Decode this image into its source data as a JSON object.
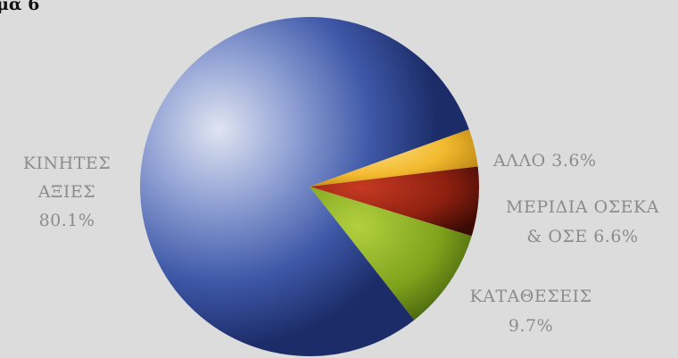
{
  "title": "μα 6",
  "chart_data": {
    "type": "pie",
    "slices": [
      {
        "name": "ΑΛΛΟ",
        "value": 3.6,
        "label_lines": [
          "ΑΛΛΟ 3.6%"
        ],
        "color": "#f2b92e"
      },
      {
        "name": "ΜΕΡΙΔΙΑ ΟΣΕΚΑ & ΟΣΕ",
        "value": 6.6,
        "label_lines": [
          "ΜΕΡΙΔΙΑ ΟΣΕΚΑ",
          "& ΟΣΕ 6.6%"
        ],
        "color": "#9a2412"
      },
      {
        "name": "ΚΑΤΑΘΕΣΕΙΣ",
        "value": 9.7,
        "label_lines": [
          "ΚΑΤΑΘΕΣΕΙΣ",
          "9.7%"
        ],
        "color": "#7ea21c"
      },
      {
        "name": "ΚΙΝΗΤΕΣ ΑΞΙΕΣ",
        "value": 80.1,
        "label_lines": [
          "ΚΙΝΗΤΕΣ",
          "ΑΞΙΕΣ",
          "80.1%"
        ],
        "color": "#2b4591"
      }
    ]
  }
}
